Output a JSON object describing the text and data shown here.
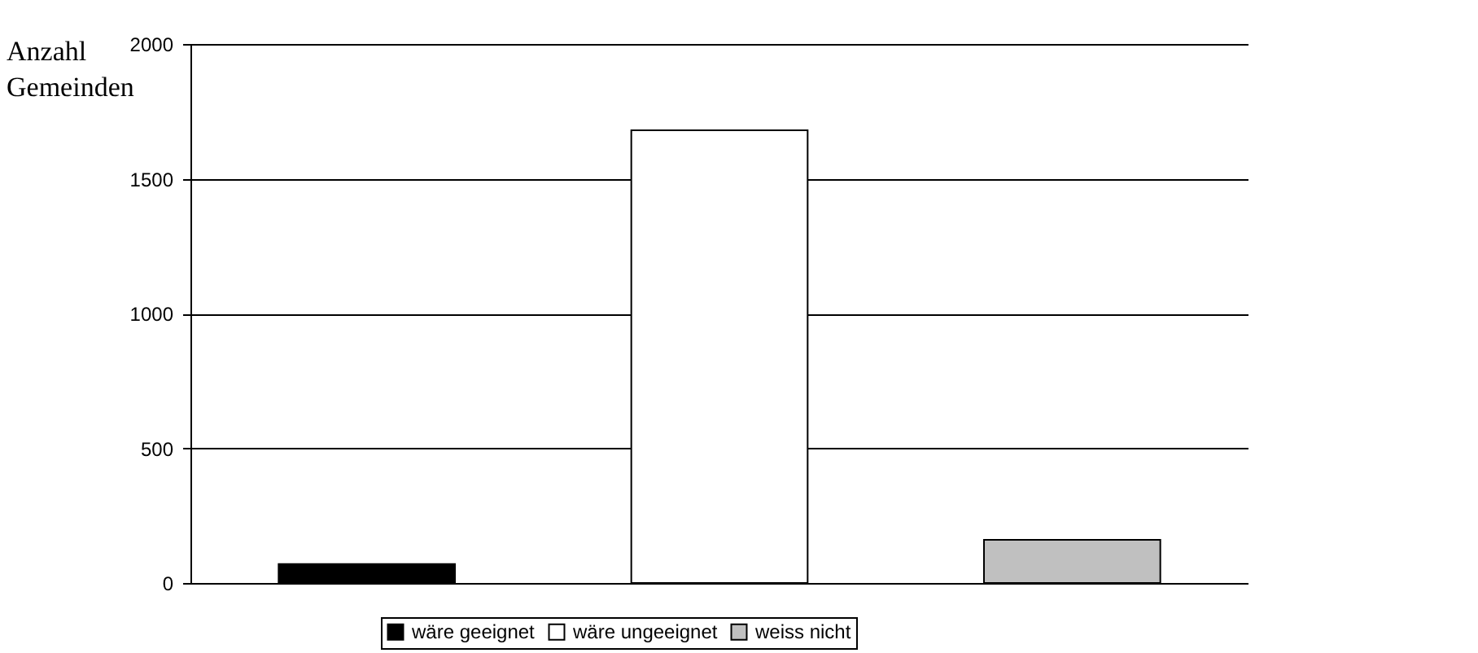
{
  "chart_data": {
    "type": "bar",
    "annotations": [
      "Anzahl Gemeinden"
    ],
    "categories": [
      null,
      null,
      null
    ],
    "series": [
      {
        "name": "wäre geeignet",
        "color": "#000000",
        "values": [
          70,
          null,
          null
        ]
      },
      {
        "name": "wäre ungeeignet",
        "color": "#ffffff",
        "values": [
          null,
          1680,
          null
        ]
      },
      {
        "name": "weiss nicht",
        "color": "#c0c0c0",
        "values": [
          null,
          null,
          160
        ]
      }
    ],
    "ylim": [
      0,
      2000
    ],
    "yticks": [
      0,
      500,
      1000,
      1500,
      2000
    ],
    "grid": "y",
    "legend": "bottom",
    "tick_labels": "y"
  }
}
